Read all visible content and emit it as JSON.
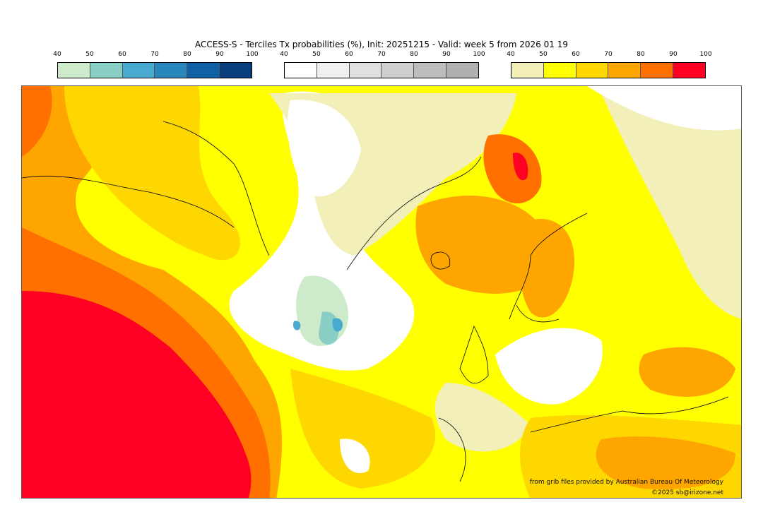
{
  "title": "ACCESS-S - Terciles Tx probabilities (%), Init: 20251215 - Valid: week 5 from 2026 01 19",
  "colorbars": [
    {
      "name": "below-normal",
      "ticks": [
        "40",
        "50",
        "60",
        "70",
        "80",
        "90",
        "100"
      ],
      "colors": [
        "#cdeacb",
        "#88cec4",
        "#48aacf",
        "#2886bb",
        "#0f60a5",
        "#083d7e"
      ]
    },
    {
      "name": "near-normal",
      "ticks": [
        "40",
        "50",
        "60",
        "70",
        "80",
        "90",
        "100"
      ],
      "colors": [
        "#ffffff",
        "#f0f0f0",
        "#e0e0e0",
        "#cfcfcf",
        "#bdbdbd",
        "#b0b0b0"
      ]
    },
    {
      "name": "above-normal",
      "ticks": [
        "40",
        "50",
        "60",
        "70",
        "80",
        "90",
        "100"
      ],
      "colors": [
        "#f2efb8",
        "#ffff00",
        "#ffd700",
        "#ffa500",
        "#ff7000",
        "#ff0025"
      ]
    }
  ],
  "credits": {
    "source": "from grib files provided by Australian Bureau Of Meteorology",
    "copyright": "©2025 sb@irizone.net"
  }
}
